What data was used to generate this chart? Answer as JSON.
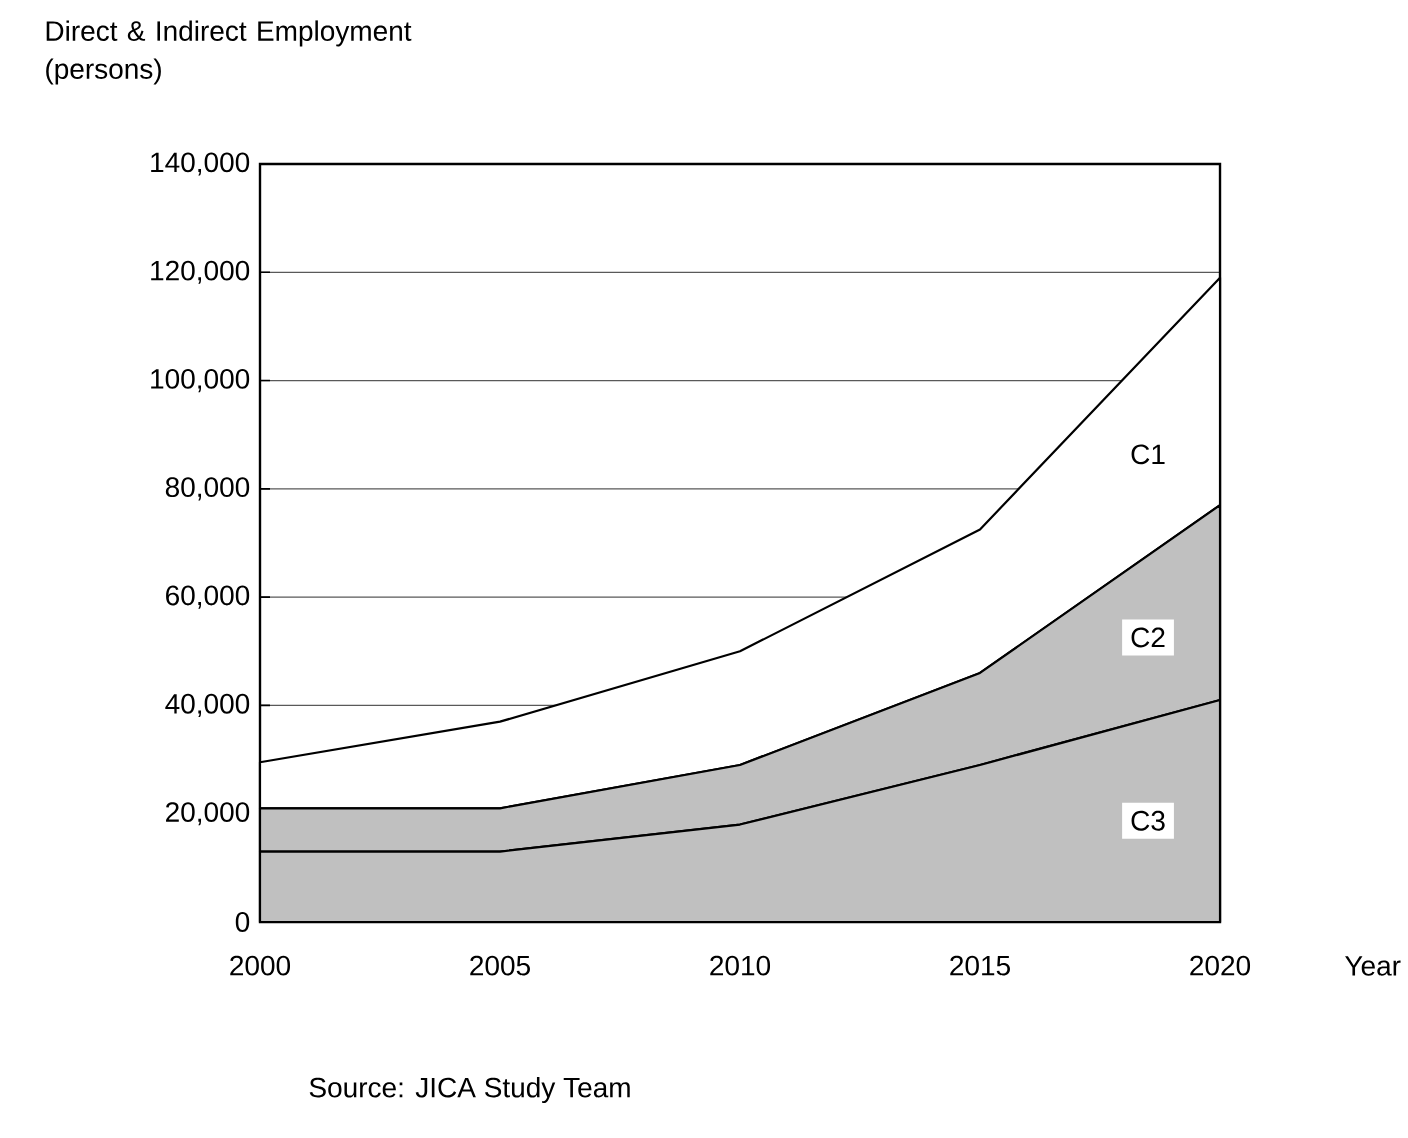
{
  "chart_data": {
    "type": "area",
    "stacked": true,
    "ylabel": "Direct & Indirect Employment (persons)",
    "xlabel": "Year",
    "x": [
      2000,
      2005,
      2010,
      2015,
      2020
    ],
    "series": [
      {
        "name": "C3",
        "color": "#c0c0c0",
        "values": [
          13000,
          13000,
          18000,
          29000,
          41000
        ]
      },
      {
        "name": "C2",
        "color": "#c0c0c0",
        "values": [
          8000,
          8000,
          11000,
          17000,
          36000
        ]
      },
      {
        "name": "C1",
        "color": "#ffffff",
        "values": [
          8500,
          16000,
          21000,
          26500,
          42000
        ]
      }
    ],
    "xlim": [
      2000,
      2020
    ],
    "xticks": [
      2000,
      2005,
      2010,
      2015,
      2020
    ],
    "ylim": [
      0,
      140000
    ],
    "yticks": [
      0,
      {
        "value": 20000,
        "label": "20,000"
      },
      {
        "value": 40000,
        "label": "40,000"
      },
      {
        "value": 60000,
        "label": "60,000"
      },
      {
        "value": 80000,
        "label": "80,000"
      },
      {
        "value": 100000,
        "label": "100,000"
      },
      {
        "value": 120000,
        "label": "120,000"
      },
      {
        "value": 140000,
        "label": "140,000"
      }
    ],
    "grid": "y",
    "annotations": [
      "Source: JICA Study Team"
    ]
  }
}
